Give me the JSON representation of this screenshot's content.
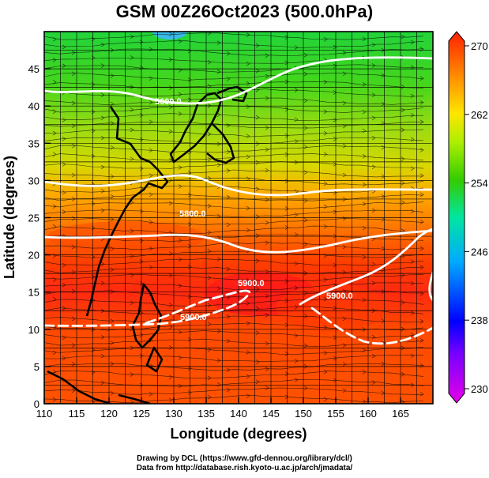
{
  "title": "GSM 00Z26Oct2023 (500.0hPa)",
  "map": {
    "xlabel": "Longitude (degrees)",
    "ylabel": "Latitude (degrees)",
    "x_ticks": [
      "110",
      "115",
      "120",
      "125",
      "130",
      "135",
      "140",
      "145",
      "150",
      "155",
      "160",
      "165"
    ],
    "y_ticks": [
      "0",
      "5",
      "10",
      "15",
      "20",
      "25",
      "30",
      "35",
      "40",
      "45"
    ],
    "xlim": [
      110,
      170
    ],
    "ylim": [
      0,
      50
    ],
    "contour_labels": [
      "5600.0",
      "5800.0",
      "5900.0",
      "5900.0",
      "5900.0"
    ]
  },
  "colorbar": {
    "ticks": [
      "230",
      "238",
      "246",
      "254",
      "262",
      "270"
    ],
    "range": [
      230,
      270
    ],
    "colors": [
      "#e600e6",
      "#0000ff",
      "#00aaff",
      "#00e6a0",
      "#33cc00",
      "#aaee00",
      "#ffe600",
      "#ff8c00",
      "#ff3300",
      "#f01010"
    ]
  },
  "credits": {
    "line1": "Drawing by DCL (https://www.gfd-dennou.org/library/dcl/)",
    "line2": "Data from http://database.rish.kyoto-u.ac.jp/arch/jmadata/"
  }
}
